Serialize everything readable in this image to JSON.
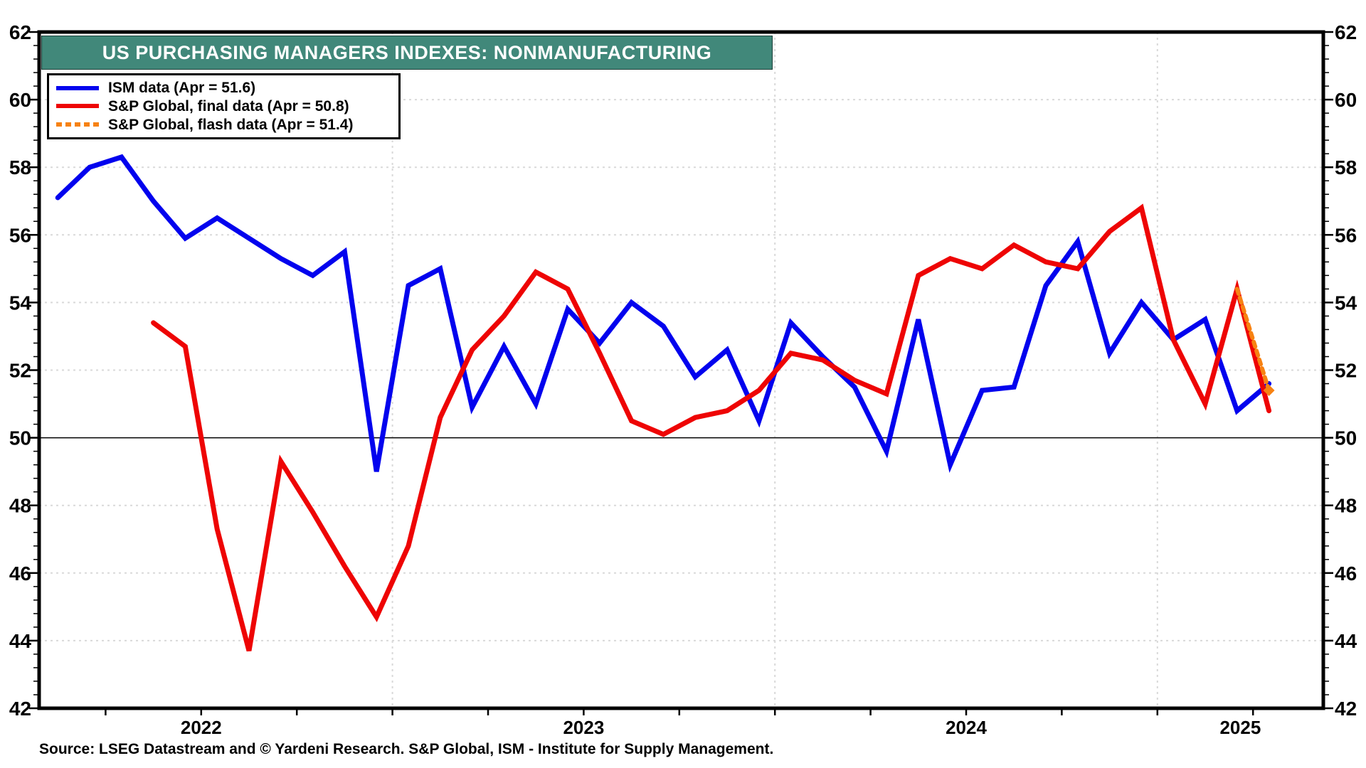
{
  "chart_data": {
    "type": "line",
    "title": "US PURCHASING MANAGERS INDEXES: NONMANUFACTURING",
    "source": "Source: LSEG Datastream and © Yardeni Research. S&P Global, ISM - Institute for Supply Management.",
    "y_axis": {
      "min": 42,
      "max": 62,
      "major_step": 2,
      "minor_step": 0.4,
      "baseline": 50,
      "tick_labels": [
        "42",
        "44",
        "46",
        "48",
        "50",
        "52",
        "54",
        "56",
        "58",
        "60",
        "62"
      ],
      "labels_on_both_sides": true,
      "grid": "dotted horizontal at every major tick, solid thin line at 50"
    },
    "x_axis": {
      "year_labels": [
        "2022",
        "2023",
        "2024",
        "2025"
      ],
      "year_boundary_month_indices": [
        12,
        24,
        36
      ],
      "tick_frequency": "quarterly",
      "grid": "dotted vertical at year boundaries"
    },
    "series": [
      {
        "name": "ISM data (Apr = 51.6)",
        "color": "#0202EE",
        "style": "solid",
        "frequency": "monthly",
        "start_month": "2022-02",
        "end_month": "2025-04",
        "values": [
          57.1,
          58.0,
          58.3,
          57.0,
          55.9,
          56.5,
          55.9,
          55.3,
          54.8,
          55.5,
          49.0,
          54.5,
          55.0,
          50.9,
          52.7,
          51.0,
          53.8,
          52.8,
          54.0,
          53.3,
          51.8,
          52.6,
          50.5,
          53.4,
          52.4,
          51.5,
          49.6,
          53.5,
          49.2,
          51.4,
          51.5,
          54.5,
          55.8,
          52.5,
          54.0,
          52.9,
          53.5,
          50.8,
          51.6
        ]
      },
      {
        "name": "S&P Global, final data (Apr = 50.8)",
        "color": "#EE0404",
        "style": "solid",
        "frequency": "monthly",
        "start_month": "2022-05",
        "end_month": "2025-04",
        "values": [
          53.4,
          52.7,
          47.3,
          43.7,
          49.3,
          47.8,
          46.2,
          44.7,
          46.8,
          50.6,
          52.6,
          53.6,
          54.9,
          54.4,
          52.5,
          50.5,
          50.1,
          50.6,
          50.8,
          51.4,
          52.5,
          52.3,
          51.7,
          51.3,
          54.8,
          55.3,
          55.0,
          55.7,
          55.2,
          55.0,
          56.1,
          56.8,
          52.9,
          51.0,
          54.4,
          50.8
        ]
      },
      {
        "name": "S&P Global, flash data (Apr = 51.4)",
        "color": "#F78212",
        "style": "dotted",
        "frequency": "monthly",
        "start_month": "2025-03",
        "end_month": "2025-04",
        "values": [
          54.4,
          51.4
        ],
        "end_marker": "diamond"
      }
    ],
    "colors": {
      "title_bg": "#41887A",
      "title_text": "#FFFFFF",
      "grid": "#D9D9D9",
      "axis": "#000000",
      "background": "#FFFFFF"
    },
    "legend_position": "top-left inside plot, boxed"
  }
}
